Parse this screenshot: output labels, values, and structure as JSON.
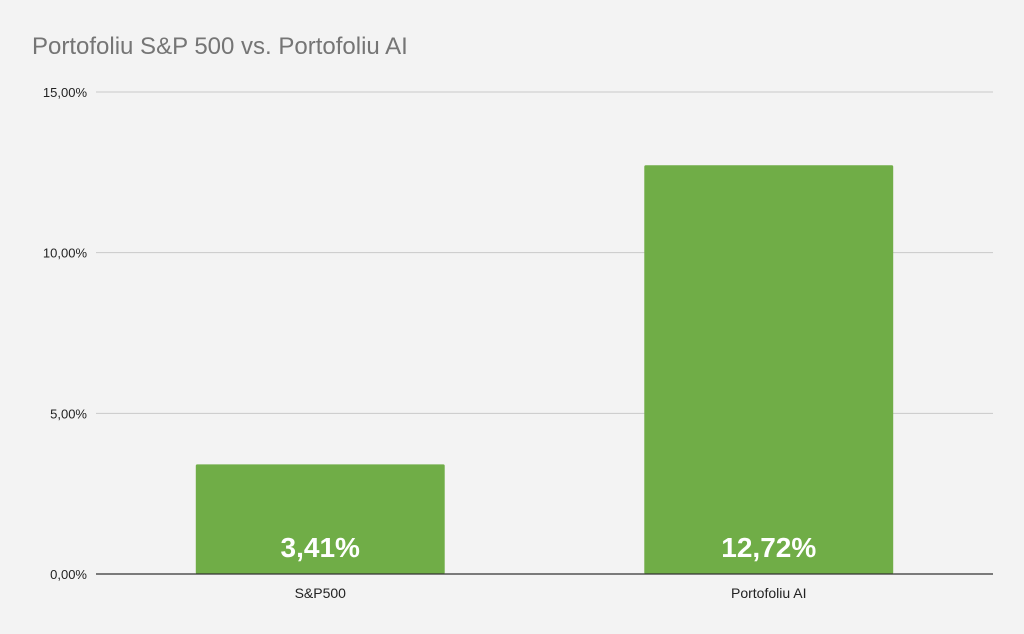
{
  "chart_data": {
    "type": "bar",
    "title": "Portofoliu S&P 500 vs. Portofoliu AI",
    "categories": [
      "S&P500",
      "Portofoliu AI"
    ],
    "values": [
      3.41,
      12.72
    ],
    "data_labels": [
      "3,41%",
      "12,72%"
    ],
    "yticks": [
      0,
      5,
      10,
      15
    ],
    "ytick_labels": [
      "0,00%",
      "5,00%",
      "10,00%",
      "15,00%"
    ],
    "ylim": [
      0,
      15
    ],
    "xlabel": "",
    "ylabel": "",
    "grid": true,
    "legend": "none",
    "bar_color": "#70ad47"
  }
}
